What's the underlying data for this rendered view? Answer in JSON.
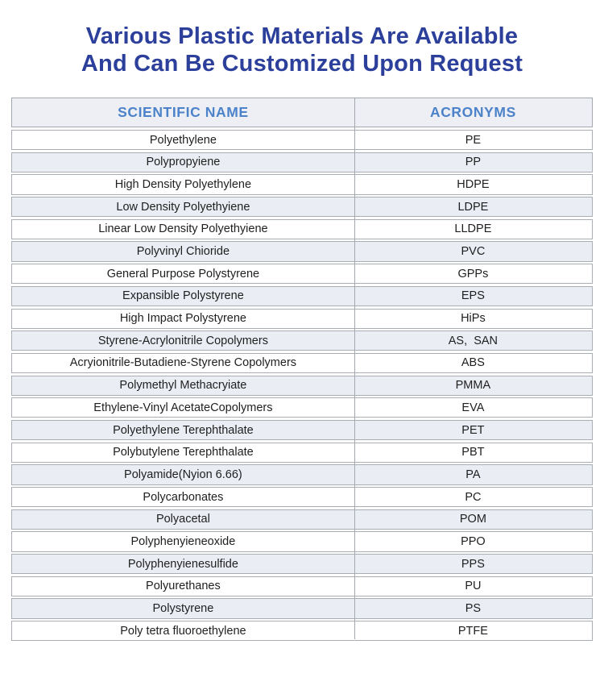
{
  "title": {
    "line1": "Various Plastic Materials Are Available",
    "line2": "And Can Be Customized Upon Request"
  },
  "table": {
    "headers": [
      "SCIENTIFIC NAME",
      "ACRONYMS"
    ],
    "rows": [
      {
        "name": "Polyethylene",
        "acronym": "PE"
      },
      {
        "name": "Polypropyiene",
        "acronym": "PP"
      },
      {
        "name": "High Density Polyethylene",
        "acronym": "HDPE"
      },
      {
        "name": "Low Density Polyethyiene",
        "acronym": "LDPE"
      },
      {
        "name": "Linear Low Density Polyethyiene",
        "acronym": "LLDPE"
      },
      {
        "name": "Polyvinyl Chioride",
        "acronym": "PVC"
      },
      {
        "name": "General Purpose Polystyrene",
        "acronym": "GPPs"
      },
      {
        "name": "Expansible Polystyrene",
        "acronym": "EPS"
      },
      {
        "name": "High Impact Polystyrene",
        "acronym": "HiPs"
      },
      {
        "name": "Styrene-Acrylonitrile Copolymers",
        "acronym": "AS,  SAN"
      },
      {
        "name": "Acryionitrile-Butadiene-Styrene Copolymers",
        "acronym": "ABS"
      },
      {
        "name": "Polymethyl Methacryiate",
        "acronym": "PMMA"
      },
      {
        "name": "Ethylene-Vinyl AcetateCopolymers",
        "acronym": "EVA"
      },
      {
        "name": "Polyethylene Terephthalate",
        "acronym": "PET"
      },
      {
        "name": "Polybutylene Terephthalate",
        "acronym": "PBT"
      },
      {
        "name": "Polyamide(Nyion 6.66)",
        "acronym": "PA"
      },
      {
        "name": "Polycarbonates",
        "acronym": "PC"
      },
      {
        "name": "Polyacetal",
        "acronym": "POM"
      },
      {
        "name": "Polyphenyieneoxide",
        "acronym": "PPO"
      },
      {
        "name": "Polyphenyienesulfide",
        "acronym": "PPS"
      },
      {
        "name": "Polyurethanes",
        "acronym": "PU"
      },
      {
        "name": "Polystyrene",
        "acronym": "PS"
      },
      {
        "name": "Poly tetra fluoroethylene",
        "acronym": "PTFE"
      }
    ]
  },
  "colors": {
    "title_text": "#2b3f9b",
    "header_text": "#4b82c9",
    "header_bg": "#edeff5",
    "row_alt_bg": "#eaedf4",
    "row_bg": "#ffffff",
    "border": "#a3a7ae",
    "cell_text": "#1f1f1f",
    "page_bg": "#ffffff"
  }
}
